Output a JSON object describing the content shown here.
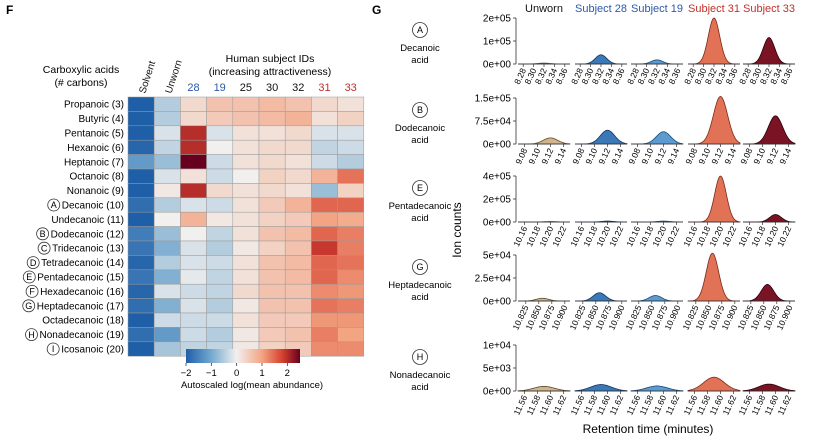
{
  "panel_f": {
    "letter": "F",
    "row_header_line1": "Carboxylic acids",
    "row_header_line2": "(# carbons)",
    "col_header_line1": "Human subject IDs",
    "col_header_line2": "(increasing attractiveness)",
    "colorbar_label": "Autoscaled log(mean abundance)",
    "colorbar_ticks": [
      "−2",
      "−1",
      "0",
      "1",
      "2"
    ]
  },
  "panel_g": {
    "letter": "G",
    "y_axis_label": "Ion counts",
    "x_axis_label": "Retention time (minutes)"
  },
  "chart_data": [
    {
      "type": "heatmap",
      "columns": [
        {
          "label": "Solvent",
          "color": "#111111",
          "rotated": true
        },
        {
          "label": "Unworn",
          "color": "#111111",
          "rotated": true
        },
        {
          "label": "28",
          "color": "#2b59a8",
          "rotated": false
        },
        {
          "label": "19",
          "color": "#2b59a8",
          "rotated": false
        },
        {
          "label": "25",
          "color": "#111111",
          "rotated": false
        },
        {
          "label": "30",
          "color": "#111111",
          "rotated": false
        },
        {
          "label": "32",
          "color": "#111111",
          "rotated": false
        },
        {
          "label": "31",
          "color": "#c0312b",
          "rotated": false
        },
        {
          "label": "33",
          "color": "#c0312b",
          "rotated": false
        }
      ],
      "rows": [
        {
          "label": "Propanoic (3)",
          "badge": ""
        },
        {
          "label": "Butyric (4)",
          "badge": ""
        },
        {
          "label": "Pentanoic (5)",
          "badge": ""
        },
        {
          "label": "Hexanoic (6)",
          "badge": ""
        },
        {
          "label": "Heptanoic (7)",
          "badge": ""
        },
        {
          "label": "Octanoic (8)",
          "badge": ""
        },
        {
          "label": "Nonanoic (9)",
          "badge": ""
        },
        {
          "label": "Decanoic (10)",
          "badge": "A"
        },
        {
          "label": "Undecanoic (11)",
          "badge": ""
        },
        {
          "label": "Dodecanoic (12)",
          "badge": "B"
        },
        {
          "label": "Tridecanoic (13)",
          "badge": "C"
        },
        {
          "label": "Tetradecanoic (14)",
          "badge": "D"
        },
        {
          "label": "Pentadecanoic (15)",
          "badge": "E"
        },
        {
          "label": "Hexadecanoic (16)",
          "badge": "F"
        },
        {
          "label": "Heptadecanoic (17)",
          "badge": "G"
        },
        {
          "label": "Octadecanoic (18)",
          "badge": ""
        },
        {
          "label": "Nonadecanoic (19)",
          "badge": "H"
        },
        {
          "label": "Icosanoic (20)",
          "badge": "I"
        }
      ],
      "values": [
        [
          -2.0,
          -0.5,
          0.3,
          0.6,
          0.6,
          0.7,
          0.6,
          0.3,
          0.2
        ],
        [
          -2.0,
          -0.5,
          0.3,
          0.5,
          0.6,
          0.7,
          0.8,
          0.2,
          0.4
        ],
        [
          -2.0,
          -0.2,
          2.0,
          -0.2,
          0.2,
          0.2,
          0.3,
          -0.2,
          -0.2
        ],
        [
          -1.9,
          -0.4,
          2.0,
          0.0,
          0.2,
          0.3,
          0.3,
          -0.4,
          -0.3
        ],
        [
          -1.2,
          -0.7,
          2.5,
          -0.3,
          0.2,
          0.3,
          0.2,
          -0.3,
          -0.5
        ],
        [
          -2.0,
          -0.2,
          0.2,
          -0.3,
          0.0,
          0.4,
          0.3,
          0.8,
          1.4
        ],
        [
          -2.0,
          0.1,
          2.0,
          0.3,
          0.2,
          0.3,
          0.2,
          -0.7,
          0.4
        ],
        [
          -1.8,
          -0.5,
          -0.2,
          -0.3,
          0.2,
          0.5,
          0.8,
          1.5,
          1.5
        ],
        [
          -2.0,
          0.0,
          0.8,
          0.1,
          0.2,
          0.4,
          0.5,
          1.0,
          0.9
        ],
        [
          -1.6,
          -0.7,
          0.0,
          -0.4,
          0.2,
          0.6,
          0.7,
          1.5,
          1.3
        ],
        [
          -1.7,
          -0.9,
          -0.2,
          -0.5,
          0.1,
          0.4,
          0.6,
          1.9,
          1.3
        ],
        [
          -1.9,
          -0.5,
          -0.2,
          -0.3,
          0.2,
          0.6,
          0.7,
          1.5,
          1.4
        ],
        [
          -1.7,
          -0.9,
          -0.1,
          -0.4,
          0.2,
          0.6,
          0.7,
          1.5,
          1.2
        ],
        [
          -1.9,
          -0.2,
          -0.3,
          -0.4,
          0.3,
          0.6,
          0.6,
          1.2,
          1.1
        ],
        [
          -1.8,
          -0.9,
          -0.2,
          -0.5,
          0.1,
          0.6,
          0.6,
          1.4,
          1.3
        ],
        [
          -2.0,
          -0.3,
          -0.3,
          -0.3,
          0.2,
          0.5,
          0.5,
          1.1,
          1.1
        ],
        [
          -1.8,
          -1.2,
          -0.3,
          -0.5,
          0.1,
          0.5,
          0.6,
          1.3,
          1.0
        ],
        [
          -2.0,
          -0.6,
          -0.4,
          -0.4,
          0.1,
          0.4,
          0.5,
          1.2,
          1.2
        ]
      ],
      "color_scale": {
        "min": -2,
        "max": 2.5,
        "stops": [
          {
            "v": -2.0,
            "c": "#1f5fa8"
          },
          {
            "v": -1.0,
            "c": "#74a9cf"
          },
          {
            "v": 0.0,
            "c": "#f2f0ee"
          },
          {
            "v": 1.0,
            "c": "#f3a483"
          },
          {
            "v": 1.8,
            "c": "#d6412f"
          },
          {
            "v": 2.5,
            "c": "#67001f"
          }
        ]
      }
    },
    {
      "type": "area",
      "series": [
        {
          "name": "Unworn",
          "fill": "#d2b48c",
          "stroke": "#5a4a30"
        },
        {
          "name": "Subject 28",
          "fill": "#3a78b8",
          "stroke": "#12355e"
        },
        {
          "name": "Subject 19",
          "fill": "#5b9bd0",
          "stroke": "#1f4a78"
        },
        {
          "name": "Subject 31",
          "fill": "#e27256",
          "stroke": "#7a2a1a"
        },
        {
          "name": "Subject 33",
          "fill": "#7a1424",
          "stroke": "#2a0008"
        }
      ],
      "header_colors": [
        "#111111",
        "#2b59a8",
        "#2b59a8",
        "#c0312b",
        "#c0312b"
      ],
      "rows": [
        {
          "badge": "A",
          "name_lines": [
            "Decanoic",
            "acid"
          ],
          "ylim": [
            0,
            200000
          ],
          "yticks": [
            {
              "v": 0,
              "label": "0e+00"
            },
            {
              "v": 100000,
              "label": "1e+05"
            },
            {
              "v": 200000,
              "label": "2e+05"
            }
          ],
          "xlim": [
            8.27,
            8.37
          ],
          "xticks": [
            8.28,
            8.3,
            8.32,
            8.34,
            8.36
          ],
          "xtick_labels": [
            "8.28",
            "8.30",
            "8.32",
            "8.34",
            "8.36"
          ],
          "peak_center": 8.32,
          "peak_width": 0.011,
          "heights": [
            4000,
            40000,
            18000,
            200000,
            115000
          ]
        },
        {
          "badge": "B",
          "name_lines": [
            "Dodecanoic",
            "acid"
          ],
          "ylim": [
            0,
            150000
          ],
          "yticks": [
            {
              "v": 0,
              "label": "0e+00"
            },
            {
              "v": 75000,
              "label": "7.5e+04"
            },
            {
              "v": 150000,
              "label": "1.5e+05"
            }
          ],
          "xlim": [
            9.07,
            9.15
          ],
          "xticks": [
            9.08,
            9.1,
            9.12,
            9.14
          ],
          "xtick_labels": [
            "9.08",
            "9.10",
            "9.12",
            "9.14"
          ],
          "peak_center": 9.12,
          "peak_width": 0.011,
          "heights": [
            20000,
            45000,
            40000,
            155000,
            92000
          ]
        },
        {
          "badge": "E",
          "name_lines": [
            "Pentadecanoic",
            "acid"
          ],
          "ylim": [
            0,
            400000
          ],
          "yticks": [
            {
              "v": 0,
              "label": "0e+00"
            },
            {
              "v": 200000,
              "label": "2e+05"
            },
            {
              "v": 400000,
              "label": "4e+05"
            }
          ],
          "xlim": [
            10.15,
            10.23
          ],
          "xticks": [
            10.16,
            10.18,
            10.2,
            10.22
          ],
          "xtick_labels": [
            "10.16",
            "10.18",
            "10.20",
            "10.22"
          ],
          "peak_center": 10.2,
          "peak_width": 0.009,
          "heights": [
            4000,
            8000,
            8000,
            400000,
            65000
          ]
        },
        {
          "badge": "G",
          "name_lines": [
            "Heptadecanoic",
            "acid"
          ],
          "ylim": [
            0,
            50000
          ],
          "yticks": [
            {
              "v": 0,
              "label": "0e+00"
            },
            {
              "v": 25000,
              "label": "2.5e+04"
            },
            {
              "v": 50000,
              "label": "5e+04"
            }
          ],
          "xlim": [
            10.81,
            10.91
          ],
          "xticks": [
            10.825,
            10.85,
            10.875,
            10.9
          ],
          "xtick_labels": [
            "10.825",
            "10.850",
            "10.875",
            "10.900"
          ],
          "peak_center": 10.857,
          "peak_width": 0.012,
          "heights": [
            3000,
            9000,
            6000,
            52000,
            18000
          ]
        },
        {
          "badge": "H",
          "name_lines": [
            "Nonadecanoic",
            "acid"
          ],
          "ylim": [
            0,
            10000
          ],
          "yticks": [
            {
              "v": 0,
              "label": "0e+00"
            },
            {
              "v": 5000,
              "label": "5e+03"
            },
            {
              "v": 10000,
              "label": "1e+04"
            }
          ],
          "xlim": [
            11.55,
            11.63
          ],
          "xticks": [
            11.56,
            11.58,
            11.6,
            11.62
          ],
          "xtick_labels": [
            "11.56",
            "11.58",
            "11.60",
            "11.62"
          ],
          "peak_center": 11.59,
          "peak_width": 0.016,
          "heights": [
            1000,
            1400,
            1100,
            3000,
            1500
          ]
        }
      ]
    }
  ]
}
